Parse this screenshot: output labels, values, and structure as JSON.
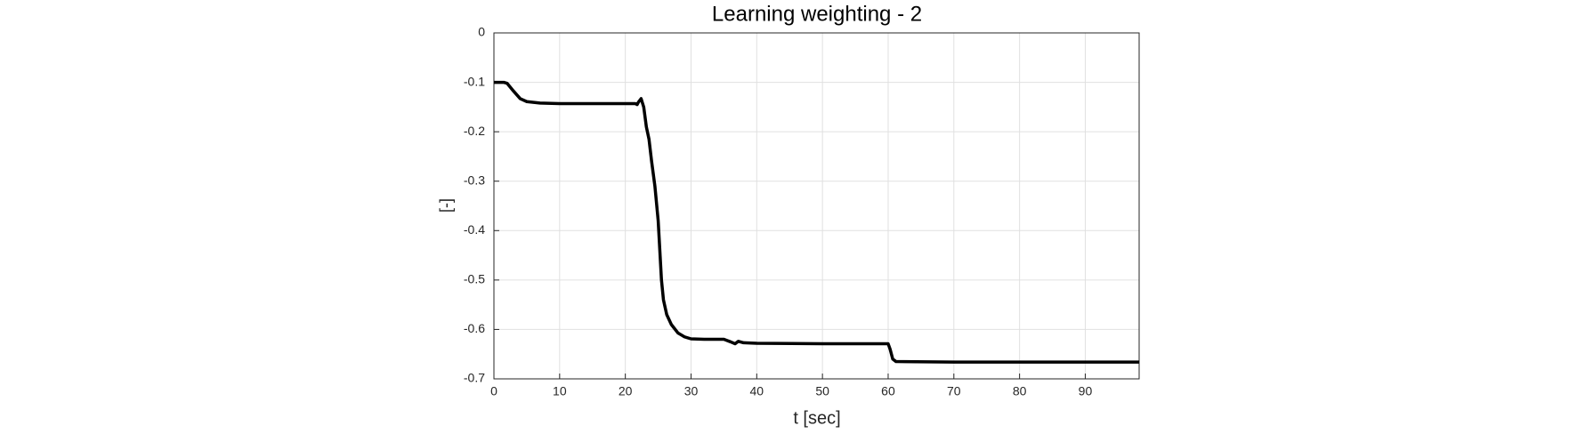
{
  "chart_data": {
    "type": "line",
    "title": "Learning weighting - 2",
    "xlabel": "t [sec]",
    "ylabel": "[-]",
    "x": [
      0,
      1.5,
      2,
      3,
      4,
      5,
      7,
      10,
      15,
      21.5,
      21.8,
      22,
      22.4,
      22.8,
      23.2,
      23.6,
      24,
      24.5,
      25,
      25.5,
      25.8,
      26.3,
      27,
      28,
      29,
      30,
      32,
      35,
      36,
      36.7,
      37.2,
      38,
      40,
      50,
      60,
      60.3,
      60.7,
      61.2,
      70,
      98.2
    ],
    "y": [
      -0.1,
      -0.1,
      -0.102,
      -0.118,
      -0.133,
      -0.139,
      -0.142,
      -0.143,
      -0.143,
      -0.143,
      -0.145,
      -0.14,
      -0.133,
      -0.15,
      -0.19,
      -0.215,
      -0.26,
      -0.31,
      -0.38,
      -0.5,
      -0.54,
      -0.57,
      -0.59,
      -0.607,
      -0.615,
      -0.619,
      -0.62,
      -0.62,
      -0.625,
      -0.629,
      -0.624,
      -0.627,
      -0.628,
      -0.629,
      -0.629,
      -0.64,
      -0.66,
      -0.665,
      -0.666,
      -0.666
    ],
    "color": "#000000",
    "xlim": [
      0,
      98.2
    ],
    "ylim": [
      -0.7,
      0
    ],
    "xticks": [
      0,
      10,
      20,
      30,
      40,
      50,
      60,
      70,
      80,
      90
    ],
    "yticks": [
      0,
      -0.1,
      -0.2,
      -0.3,
      -0.4,
      -0.5,
      -0.6,
      -0.7
    ],
    "grid": true
  }
}
